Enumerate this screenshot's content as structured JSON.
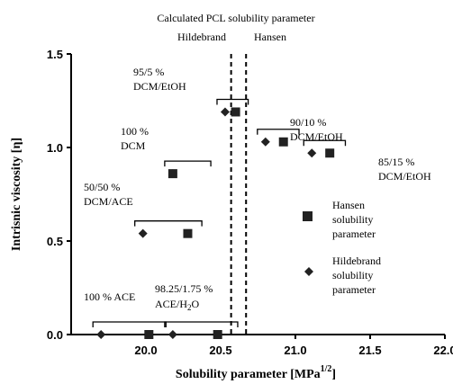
{
  "chart_data": {
    "type": "scatter",
    "title": "",
    "xlabel": "Solubility parameter [MPa",
    "xlabel_sup": "1/2",
    "xlabel_end": "]",
    "ylabel": "Intrisnic viscosity [η]",
    "xlim": [
      19.5,
      22.0
    ],
    "ylim": [
      0.0,
      1.5
    ],
    "x_ticks": [
      "20.0",
      "20.5",
      "21.0",
      "21.5",
      "22.0"
    ],
    "x_tick_values": [
      20.0,
      20.5,
      21.0,
      21.5,
      22.0
    ],
    "y_ticks": [
      "0.0",
      "0.5",
      "1.0",
      "1.5"
    ],
    "y_tick_values": [
      0.0,
      0.5,
      1.0,
      1.5
    ],
    "grid": false,
    "legend_position": "right",
    "series": [
      {
        "name": "Hansen solubility parameter",
        "legend_lines": [
          "Hansen",
          "solubility",
          "parameter"
        ],
        "marker": "square",
        "x": [
          20.02,
          20.28,
          20.18,
          20.48,
          20.6,
          20.92,
          21.23
        ],
        "y": [
          0.0,
          0.54,
          0.86,
          0.0,
          1.19,
          1.03,
          0.97
        ]
      },
      {
        "name": "Hildebrand solubility parameter",
        "legend_lines": [
          "Hildebrand",
          "solubility",
          "parameter"
        ],
        "marker": "diamond",
        "x": [
          19.7,
          19.98,
          20.18,
          20.18,
          20.53,
          20.8,
          21.11
        ],
        "y": [
          0.0,
          0.54,
          0.86,
          0.0,
          1.19,
          1.03,
          0.97
        ]
      }
    ],
    "reference_lines": {
      "heading": "Calculated PCL solubility parameter",
      "lines": [
        {
          "label": "Hildebrand",
          "x": 20.57
        },
        {
          "label": "Hansen",
          "x": 20.67
        }
      ]
    },
    "annotations": [
      {
        "lines": [
          "100 % ACE"
        ],
        "x_from": 19.7,
        "x_to": 20.08,
        "y": 0.0
      },
      {
        "lines": [
          "98.25/1.75 %",
          "ACE/H",
          "2",
          "O"
        ],
        "x_from": 20.18,
        "x_to": 20.56,
        "y": 0.0
      },
      {
        "lines": [
          "50/50 %",
          "DCM/ACE"
        ],
        "x_from": 19.98,
        "x_to": 20.32,
        "y": 0.54
      },
      {
        "lines": [
          "100 %",
          "DCM"
        ],
        "x_from": 20.18,
        "x_to": 20.38,
        "y": 0.86
      },
      {
        "lines": [
          "95/5 %",
          "DCM/EtOH"
        ],
        "x_from": 20.53,
        "x_to": 20.63,
        "y": 1.19
      },
      {
        "lines": [
          "90/10 %",
          "DCM/EtOH"
        ],
        "x_from": 20.8,
        "x_to": 20.97,
        "y": 1.03
      },
      {
        "lines": [
          "85/15 %",
          "DCM/EtOH"
        ],
        "x_from": 21.11,
        "x_to": 21.28,
        "y": 0.97
      }
    ]
  }
}
